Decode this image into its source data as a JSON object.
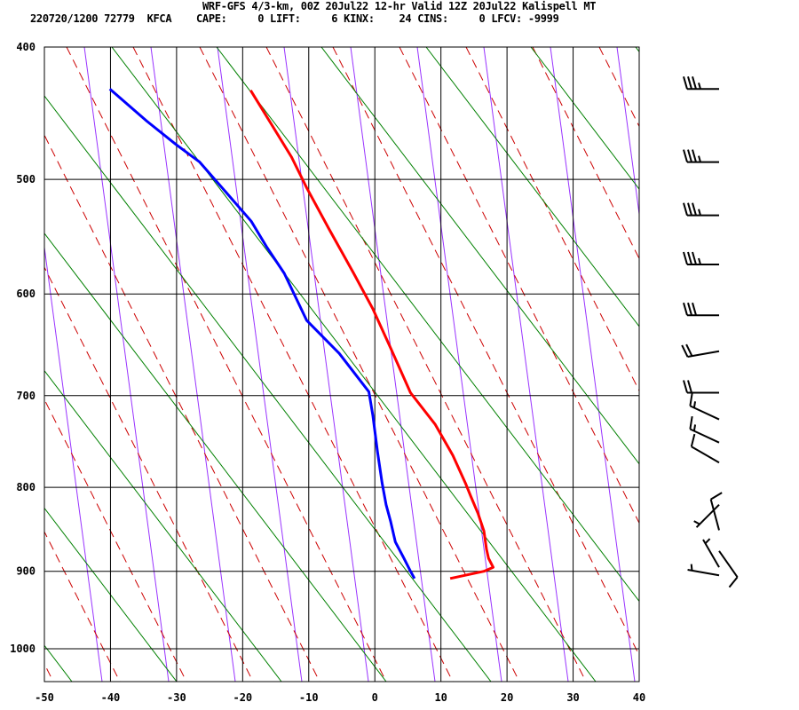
{
  "header": {
    "line1": "WRF-GFS 4/3-km, 00Z 20Jul22 12-hr Valid 12Z 20Jul22 Kalispell MT",
    "line2": "220720/1200 72779  KFCA    CAPE:     0 LIFT:     6 KINX:    24 CINS:     0 LFCV: -9999"
  },
  "chart_data": {
    "type": "line",
    "title": "WRF-GFS 4/3-km, 00Z 20Jul22 12-hr Valid 12Z 20Jul22 Kalispell MT",
    "xlabel": "",
    "ylabel": "",
    "xlim": [
      -50,
      40
    ],
    "ylim": [
      400,
      1045
    ],
    "grid": true,
    "x_ticks": [
      "-50",
      "-40",
      "-30",
      "-20",
      "-10",
      "0",
      "10",
      "20",
      "30",
      "40"
    ],
    "y_ticks": [
      "400",
      "500",
      "600",
      "700",
      "800",
      "900",
      "1000"
    ],
    "colors": {
      "temperature": "#ff0000",
      "dewpoint": "#0000ff",
      "dry_adiabat": "#9933ff",
      "moist_adiabat": "#cc0000",
      "mixing_line": "#008000",
      "grid": "#000000"
    },
    "series": [
      {
        "key": "temperature",
        "pressure": [
          431,
          482,
          507,
          541,
          581,
          614,
          652,
          697,
          730,
          764,
          795,
          810,
          830,
          851,
          873,
          884,
          895,
          900,
          909
        ],
        "temperature": [
          -18.8,
          -12.6,
          -10.3,
          -7.0,
          -3.2,
          -0.3,
          2.4,
          5.4,
          9.1,
          11.8,
          13.7,
          14.5,
          15.6,
          16.5,
          16.9,
          17.2,
          17.9,
          16.5,
          11.4
        ]
      },
      {
        "key": "dewpoint",
        "pressure": [
          430,
          454,
          472,
          486,
          507,
          535,
          557,
          581,
          625,
          657,
          696,
          721,
          760,
          795,
          820,
          840,
          864,
          884,
          900,
          909
        ],
        "temperature": [
          -40.1,
          -34.5,
          -30.1,
          -26.5,
          -23.1,
          -18.7,
          -16.4,
          -13.7,
          -10.3,
          -5.4,
          -0.9,
          -0.3,
          0.4,
          1.1,
          1.7,
          2.4,
          3.1,
          4.4,
          5.4,
          6.0
        ]
      }
    ],
    "wind_barbs": [
      {
        "pressure": 430,
        "direction": 270,
        "speed_kt": 35
      },
      {
        "pressure": 486,
        "direction": 270,
        "speed_kt": 35
      },
      {
        "pressure": 530,
        "direction": 270,
        "speed_kt": 35
      },
      {
        "pressure": 573,
        "direction": 270,
        "speed_kt": 35
      },
      {
        "pressure": 620,
        "direction": 270,
        "speed_kt": 30
      },
      {
        "pressure": 655,
        "direction": 260,
        "speed_kt": 20
      },
      {
        "pressure": 697,
        "direction": 270,
        "speed_kt": 20
      },
      {
        "pressure": 725,
        "direction": 295,
        "speed_kt": 15
      },
      {
        "pressure": 750,
        "direction": 295,
        "speed_kt": 15
      },
      {
        "pressure": 772,
        "direction": 300,
        "speed_kt": 10
      },
      {
        "pressure": 820,
        "direction": 225,
        "speed_kt": 5
      },
      {
        "pressure": 850,
        "direction": 345,
        "speed_kt": 10
      },
      {
        "pressure": 875,
        "direction": 145,
        "speed_kt": 10
      },
      {
        "pressure": 895,
        "direction": 330,
        "speed_kt": 5
      },
      {
        "pressure": 905,
        "direction": 280,
        "speed_kt": 5
      }
    ]
  }
}
